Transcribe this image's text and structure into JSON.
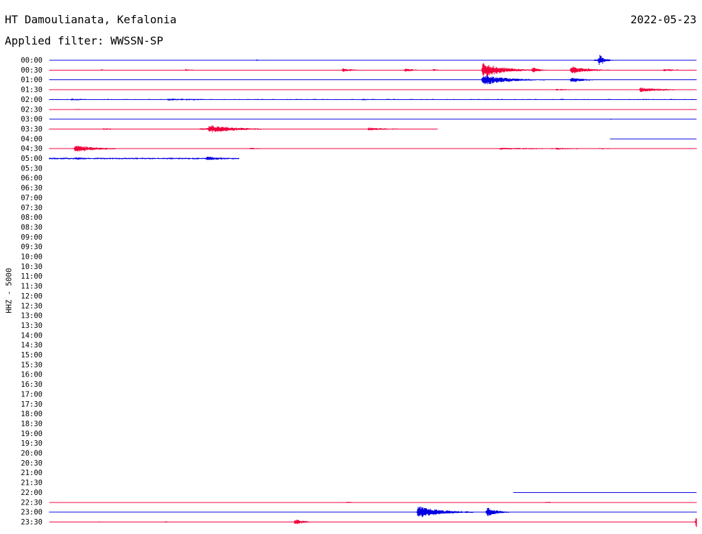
{
  "header": {
    "station": "HT Damoulianata, Kefalonia",
    "date": "2022-05-23",
    "filter": "Applied filter: WWSSN-SP"
  },
  "chart_data": {
    "type": "seismogram",
    "channel_label": "HHZ - 5000",
    "row_labels": [
      "00:00",
      "00:30",
      "01:00",
      "01:30",
      "02:00",
      "02:30",
      "03:00",
      "03:30",
      "04:00",
      "04:30",
      "05:00",
      "05:30",
      "06:00",
      "06:30",
      "07:00",
      "07:30",
      "08:00",
      "08:30",
      "09:00",
      "09:30",
      "10:00",
      "10:30",
      "11:00",
      "11:30",
      "12:00",
      "12:30",
      "13:00",
      "13:30",
      "14:00",
      "14:30",
      "15:00",
      "15:30",
      "16:00",
      "16:30",
      "17:00",
      "17:30",
      "18:00",
      "18:30",
      "19:00",
      "19:30",
      "20:00",
      "20:30",
      "21:00",
      "21:30",
      "22:00",
      "22:30",
      "23:00",
      "23:30"
    ],
    "colors": [
      "#0000e0",
      "#f0003c"
    ],
    "trace_minutes": 30,
    "traces": [
      {
        "row": 0,
        "start_min": 0,
        "end_min": 30,
        "noise": 0.3,
        "events": [
          [
            0.5,
            2.5,
            0.6
          ],
          [
            9.6,
            0.7,
            1.5
          ],
          [
            25,
            6,
            0.5
          ],
          [
            25.3,
            3.5,
            1.8
          ],
          [
            25.5,
            0.8,
            9
          ]
        ]
      },
      {
        "row": 1,
        "start_min": 0,
        "end_min": 30,
        "noise": 0.4,
        "events": [
          [
            2.4,
            0.8,
            1.2
          ],
          [
            6.3,
            1.5,
            1.5
          ],
          [
            13.6,
            1.5,
            3
          ],
          [
            16.5,
            1.2,
            3
          ],
          [
            17.8,
            1,
            1.6
          ],
          [
            20.1,
            3,
            11
          ],
          [
            22.4,
            1,
            4.5
          ],
          [
            24.2,
            2.5,
            6
          ],
          [
            28.5,
            1.8,
            2
          ]
        ]
      },
      {
        "row": 2,
        "start_min": 0,
        "end_min": 30,
        "noise": 0.3,
        "events": [
          [
            20.1,
            3.5,
            8
          ],
          [
            24.2,
            1.8,
            4
          ]
        ]
      },
      {
        "row": 3,
        "start_min": 0,
        "end_min": 30,
        "noise": 0.5,
        "events": [
          [
            23.5,
            5,
            1.2
          ],
          [
            27.4,
            3.5,
            3.5
          ]
        ]
      },
      {
        "row": 4,
        "start_min": 0,
        "end_min": 30,
        "noise": 0.7,
        "events": [
          [
            1,
            4,
            1.4
          ],
          [
            5.5,
            8,
            1.6
          ],
          [
            14.5,
            4,
            1.1
          ],
          [
            27.5,
            3,
            1
          ]
        ]
      },
      {
        "row": 5,
        "start_min": 0,
        "end_min": 30,
        "noise": 0.4,
        "events": [
          [
            1.2,
            2,
            0.7
          ]
        ]
      },
      {
        "row": 6,
        "start_min": 0,
        "end_min": 30,
        "noise": 0.3,
        "events": [
          [
            21,
            3,
            0.8
          ],
          [
            26,
            4,
            0.8
          ]
        ]
      },
      {
        "row": 7,
        "start_min": 0,
        "end_min": 18,
        "noise": 0.7,
        "events": [
          [
            2.5,
            3,
            1.2
          ],
          [
            7,
            10,
            1.4
          ],
          [
            7.4,
            4,
            6
          ],
          [
            14.8,
            4,
            2.2
          ]
        ]
      },
      {
        "row": 8,
        "start_min": 26,
        "end_min": 30,
        "noise": 0.4,
        "events": []
      },
      {
        "row": 9,
        "start_min": 0,
        "end_min": 30,
        "noise": 0.5,
        "events": [
          [
            1.2,
            3,
            5.5
          ],
          [
            9.3,
            2,
            1.2
          ],
          [
            20.9,
            12,
            1.3
          ],
          [
            23.5,
            4,
            1.4
          ],
          [
            25.5,
            4,
            1
          ]
        ]
      },
      {
        "row": 10,
        "start_min": 0,
        "end_min": 8.8,
        "noise": 1.1,
        "events": [
          [
            1.2,
            4,
            1.8
          ],
          [
            7.3,
            3,
            2.8
          ]
        ]
      },
      {
        "row": 44,
        "start_min": 21.5,
        "end_min": 30,
        "noise": 0.2,
        "events": []
      },
      {
        "row": 45,
        "start_min": 0,
        "end_min": 30,
        "noise": 0.5,
        "events": [
          [
            13.8,
            2,
            1
          ],
          [
            23,
            3,
            0.8
          ]
        ]
      },
      {
        "row": 46,
        "start_min": 0,
        "end_min": 30,
        "noise": 0.6,
        "events": [
          [
            17.1,
            3.5,
            9
          ],
          [
            20.3,
            1.5,
            7
          ]
        ]
      },
      {
        "row": 47,
        "start_min": 0,
        "end_min": 30,
        "noise": 0.35,
        "events": [
          [
            2.3,
            0.6,
            1.2
          ],
          [
            5.4,
            0.6,
            1.2
          ],
          [
            11.4,
            1.5,
            4
          ],
          [
            30,
            0.5,
            9
          ]
        ]
      }
    ]
  }
}
